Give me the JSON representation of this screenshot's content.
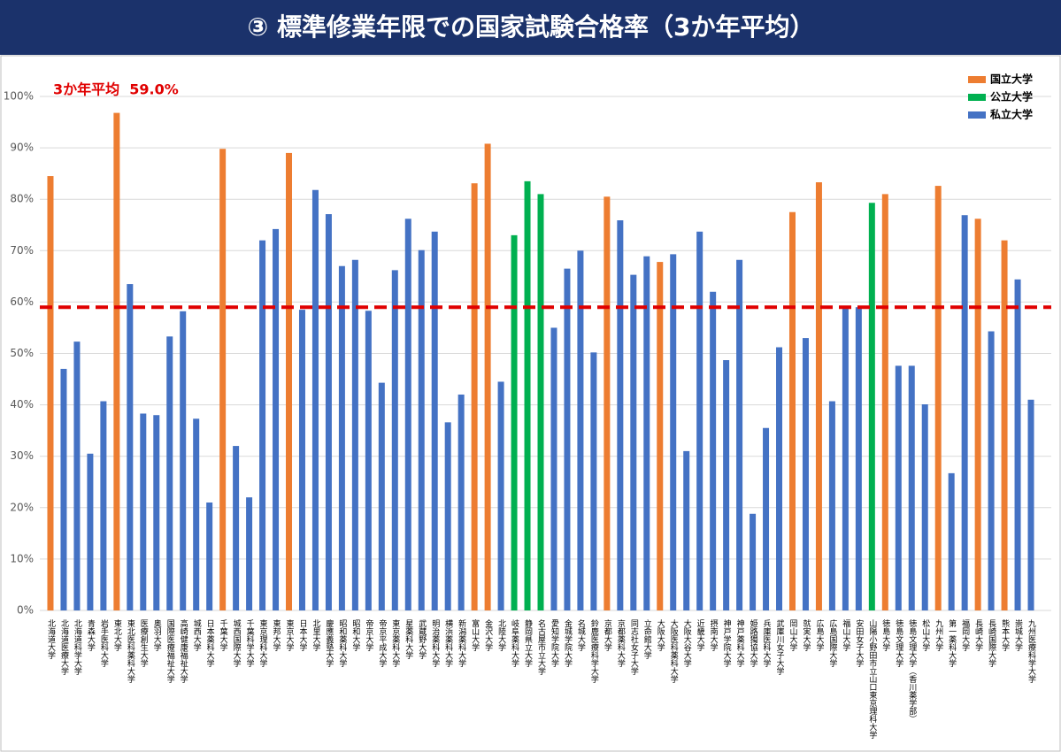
{
  "chart_data": {
    "type": "bar",
    "title": "③ 標準修業年限での国家試験合格率（3か年平均）",
    "annotation": "3か年平均  59.0%",
    "average": 59.0,
    "average_color": "#e00000",
    "categories": [
      "北海道大学",
      "北海道医療大学",
      "北海道科学大学",
      "青森大学",
      "岩手医科大学",
      "東北大学",
      "東北医科薬科大学",
      "医療創生大学",
      "奥羽大学",
      "国際医療福祉大学",
      "高崎健康福祉大学",
      "城西大学",
      "日本薬科大学",
      "千葉大学",
      "城西国際大学",
      "千葉科学大学",
      "東京理科大学",
      "東邦大学",
      "東京大学",
      "日本大学",
      "北里大学",
      "慶應義塾大学",
      "昭和薬科大学",
      "昭和大学",
      "帝京大学",
      "帝京平成大学",
      "東京薬科大学",
      "星薬科大学",
      "武蔵野大学",
      "明治薬科大学",
      "横浜薬科大学",
      "新潟薬科大学",
      "富山大学",
      "金沢大学",
      "北陸大学",
      "岐阜薬科大学",
      "静岡県立大学",
      "名古屋市立大学",
      "愛知学院大学",
      "金城学院大学",
      "名城大学",
      "鈴鹿医療科学大学",
      "京都大学",
      "京都薬科大学",
      "同志社女子大学",
      "立命館大学",
      "大阪大学",
      "大阪医科薬科大学",
      "大阪大谷大学",
      "近畿大学",
      "摂南大学",
      "神戸学院大学",
      "神戸薬科大学",
      "姫路獨協大学",
      "兵庫医科大学",
      "武庫川女子大学",
      "岡山大学",
      "就実大学",
      "広島大学",
      "広島国際大学",
      "福山大学",
      "安田女子大学",
      "山陽小野田市立山口東京理科大学",
      "徳島大学",
      "徳島文理大学",
      "徳島文理大学（香川薬学部）",
      "松山大学",
      "九州大学",
      "第一薬科大学",
      "福岡大学",
      "長崎大学",
      "長崎国際大学",
      "熊本大学",
      "崇城大学",
      "九州医療科学大学"
    ],
    "series": [
      {
        "name": "国立大学",
        "color": "#ed7d31",
        "values": [
          84.5,
          null,
          null,
          null,
          null,
          96.8,
          null,
          null,
          null,
          null,
          null,
          null,
          null,
          89.8,
          null,
          null,
          null,
          null,
          89.0,
          null,
          null,
          null,
          null,
          null,
          null,
          null,
          null,
          null,
          null,
          null,
          null,
          null,
          83.1,
          90.8,
          null,
          null,
          null,
          null,
          null,
          null,
          null,
          null,
          80.5,
          null,
          null,
          null,
          67.8,
          null,
          null,
          null,
          null,
          null,
          null,
          null,
          null,
          null,
          77.5,
          null,
          83.3,
          null,
          null,
          null,
          null,
          81.0,
          null,
          null,
          null,
          82.6,
          null,
          null,
          76.2,
          null,
          72.0,
          null,
          null
        ]
      },
      {
        "name": "公立大学",
        "color": "#00b050",
        "values": [
          null,
          null,
          null,
          null,
          null,
          null,
          null,
          null,
          null,
          null,
          null,
          null,
          null,
          null,
          null,
          null,
          null,
          null,
          null,
          null,
          null,
          null,
          null,
          null,
          null,
          null,
          null,
          null,
          null,
          null,
          null,
          null,
          null,
          null,
          null,
          73.0,
          83.5,
          81.0,
          null,
          null,
          null,
          null,
          null,
          null,
          null,
          null,
          null,
          null,
          null,
          null,
          null,
          null,
          null,
          null,
          null,
          null,
          null,
          null,
          null,
          null,
          null,
          null,
          79.3,
          null,
          null,
          null,
          null,
          null,
          null,
          null,
          null,
          null,
          null,
          null,
          null
        ]
      },
      {
        "name": "私立大学",
        "color": "#4472c4",
        "values": [
          null,
          47.0,
          52.3,
          30.5,
          40.7,
          null,
          63.5,
          38.3,
          38.0,
          53.3,
          58.2,
          37.3,
          21.0,
          null,
          32.0,
          22.0,
          72.0,
          74.2,
          null,
          58.5,
          81.8,
          77.1,
          67.0,
          68.2,
          58.3,
          44.3,
          66.2,
          76.2,
          70.1,
          73.7,
          36.6,
          42.0,
          null,
          null,
          44.5,
          null,
          null,
          null,
          55.0,
          66.5,
          70.0,
          50.2,
          null,
          75.9,
          65.3,
          68.9,
          null,
          69.3,
          31.0,
          73.7,
          62.0,
          48.7,
          68.2,
          18.8,
          35.5,
          51.2,
          null,
          53.0,
          null,
          40.7,
          58.8,
          59.0,
          null,
          null,
          47.6,
          47.6,
          40.1,
          null,
          26.7,
          76.9,
          null,
          54.3,
          null,
          64.4,
          41.0
        ]
      }
    ],
    "ylim": [
      0,
      100
    ],
    "yticks": [
      {
        "value": 0,
        "label": "0%"
      },
      {
        "value": 10,
        "label": "10%"
      },
      {
        "value": 20,
        "label": "20%"
      },
      {
        "value": 30,
        "label": "30%"
      },
      {
        "value": 40,
        "label": "40%"
      },
      {
        "value": 50,
        "label": "50%"
      },
      {
        "value": 60,
        "label": "60%"
      },
      {
        "value": 70,
        "label": "70%"
      },
      {
        "value": 80,
        "label": "80%"
      },
      {
        "value": 90,
        "label": "90%"
      },
      {
        "value": 100,
        "label": "100%"
      }
    ],
    "grid": true,
    "legend": "top-right"
  }
}
